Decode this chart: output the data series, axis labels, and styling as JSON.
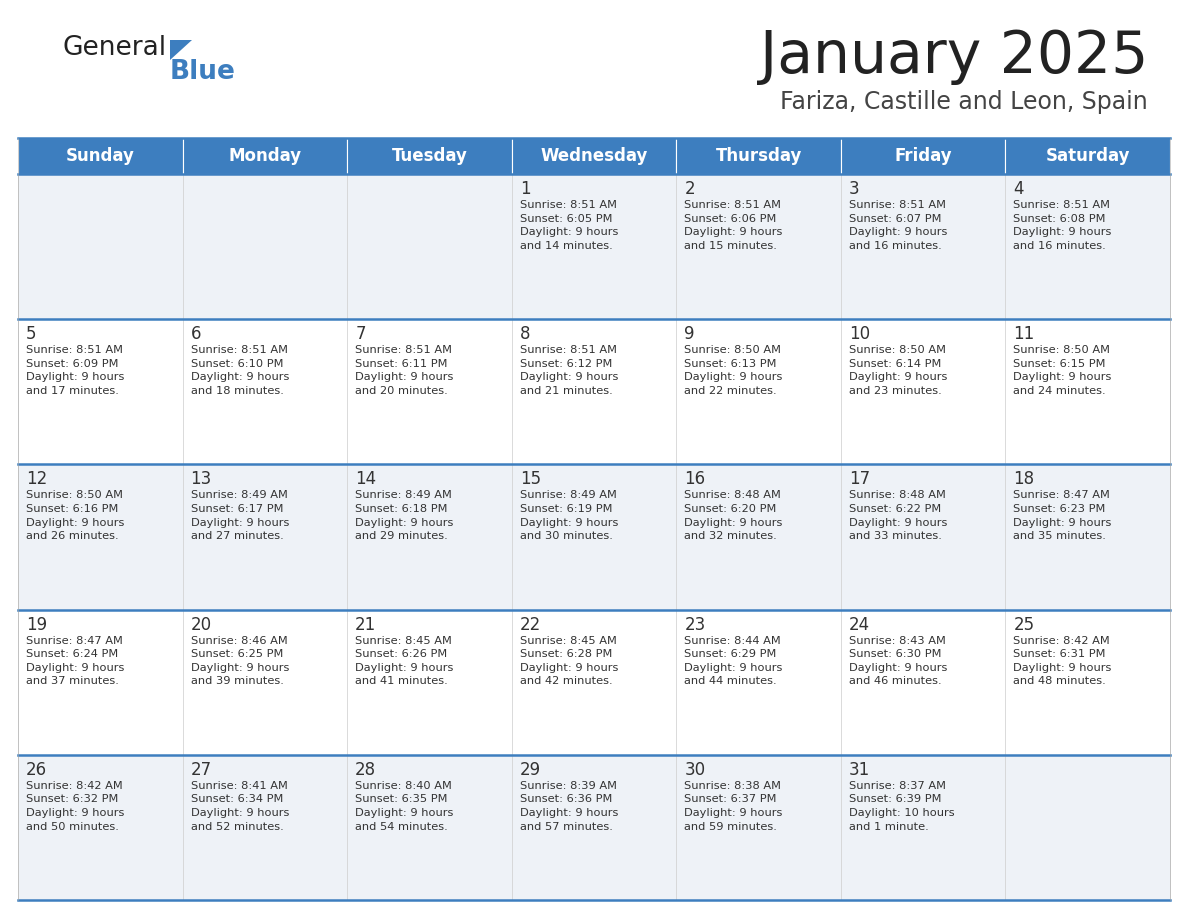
{
  "title": "January 2025",
  "subtitle": "Fariza, Castille and Leon, Spain",
  "header_color": "#3d7ebf",
  "header_text_color": "#ffffff",
  "cell_bg_even": "#eef2f7",
  "cell_bg_odd": "#ffffff",
  "border_color": "#3d7ebf",
  "text_color": "#333333",
  "days_of_week": [
    "Sunday",
    "Monday",
    "Tuesday",
    "Wednesday",
    "Thursday",
    "Friday",
    "Saturday"
  ],
  "calendar_data": [
    [
      {
        "day": "",
        "info": ""
      },
      {
        "day": "",
        "info": ""
      },
      {
        "day": "",
        "info": ""
      },
      {
        "day": "1",
        "info": "Sunrise: 8:51 AM\nSunset: 6:05 PM\nDaylight: 9 hours\nand 14 minutes."
      },
      {
        "day": "2",
        "info": "Sunrise: 8:51 AM\nSunset: 6:06 PM\nDaylight: 9 hours\nand 15 minutes."
      },
      {
        "day": "3",
        "info": "Sunrise: 8:51 AM\nSunset: 6:07 PM\nDaylight: 9 hours\nand 16 minutes."
      },
      {
        "day": "4",
        "info": "Sunrise: 8:51 AM\nSunset: 6:08 PM\nDaylight: 9 hours\nand 16 minutes."
      }
    ],
    [
      {
        "day": "5",
        "info": "Sunrise: 8:51 AM\nSunset: 6:09 PM\nDaylight: 9 hours\nand 17 minutes."
      },
      {
        "day": "6",
        "info": "Sunrise: 8:51 AM\nSunset: 6:10 PM\nDaylight: 9 hours\nand 18 minutes."
      },
      {
        "day": "7",
        "info": "Sunrise: 8:51 AM\nSunset: 6:11 PM\nDaylight: 9 hours\nand 20 minutes."
      },
      {
        "day": "8",
        "info": "Sunrise: 8:51 AM\nSunset: 6:12 PM\nDaylight: 9 hours\nand 21 minutes."
      },
      {
        "day": "9",
        "info": "Sunrise: 8:50 AM\nSunset: 6:13 PM\nDaylight: 9 hours\nand 22 minutes."
      },
      {
        "day": "10",
        "info": "Sunrise: 8:50 AM\nSunset: 6:14 PM\nDaylight: 9 hours\nand 23 minutes."
      },
      {
        "day": "11",
        "info": "Sunrise: 8:50 AM\nSunset: 6:15 PM\nDaylight: 9 hours\nand 24 minutes."
      }
    ],
    [
      {
        "day": "12",
        "info": "Sunrise: 8:50 AM\nSunset: 6:16 PM\nDaylight: 9 hours\nand 26 minutes."
      },
      {
        "day": "13",
        "info": "Sunrise: 8:49 AM\nSunset: 6:17 PM\nDaylight: 9 hours\nand 27 minutes."
      },
      {
        "day": "14",
        "info": "Sunrise: 8:49 AM\nSunset: 6:18 PM\nDaylight: 9 hours\nand 29 minutes."
      },
      {
        "day": "15",
        "info": "Sunrise: 8:49 AM\nSunset: 6:19 PM\nDaylight: 9 hours\nand 30 minutes."
      },
      {
        "day": "16",
        "info": "Sunrise: 8:48 AM\nSunset: 6:20 PM\nDaylight: 9 hours\nand 32 minutes."
      },
      {
        "day": "17",
        "info": "Sunrise: 8:48 AM\nSunset: 6:22 PM\nDaylight: 9 hours\nand 33 minutes."
      },
      {
        "day": "18",
        "info": "Sunrise: 8:47 AM\nSunset: 6:23 PM\nDaylight: 9 hours\nand 35 minutes."
      }
    ],
    [
      {
        "day": "19",
        "info": "Sunrise: 8:47 AM\nSunset: 6:24 PM\nDaylight: 9 hours\nand 37 minutes."
      },
      {
        "day": "20",
        "info": "Sunrise: 8:46 AM\nSunset: 6:25 PM\nDaylight: 9 hours\nand 39 minutes."
      },
      {
        "day": "21",
        "info": "Sunrise: 8:45 AM\nSunset: 6:26 PM\nDaylight: 9 hours\nand 41 minutes."
      },
      {
        "day": "22",
        "info": "Sunrise: 8:45 AM\nSunset: 6:28 PM\nDaylight: 9 hours\nand 42 minutes."
      },
      {
        "day": "23",
        "info": "Sunrise: 8:44 AM\nSunset: 6:29 PM\nDaylight: 9 hours\nand 44 minutes."
      },
      {
        "day": "24",
        "info": "Sunrise: 8:43 AM\nSunset: 6:30 PM\nDaylight: 9 hours\nand 46 minutes."
      },
      {
        "day": "25",
        "info": "Sunrise: 8:42 AM\nSunset: 6:31 PM\nDaylight: 9 hours\nand 48 minutes."
      }
    ],
    [
      {
        "day": "26",
        "info": "Sunrise: 8:42 AM\nSunset: 6:32 PM\nDaylight: 9 hours\nand 50 minutes."
      },
      {
        "day": "27",
        "info": "Sunrise: 8:41 AM\nSunset: 6:34 PM\nDaylight: 9 hours\nand 52 minutes."
      },
      {
        "day": "28",
        "info": "Sunrise: 8:40 AM\nSunset: 6:35 PM\nDaylight: 9 hours\nand 54 minutes."
      },
      {
        "day": "29",
        "info": "Sunrise: 8:39 AM\nSunset: 6:36 PM\nDaylight: 9 hours\nand 57 minutes."
      },
      {
        "day": "30",
        "info": "Sunrise: 8:38 AM\nSunset: 6:37 PM\nDaylight: 9 hours\nand 59 minutes."
      },
      {
        "day": "31",
        "info": "Sunrise: 8:37 AM\nSunset: 6:39 PM\nDaylight: 10 hours\nand 1 minute."
      },
      {
        "day": "",
        "info": ""
      }
    ]
  ]
}
